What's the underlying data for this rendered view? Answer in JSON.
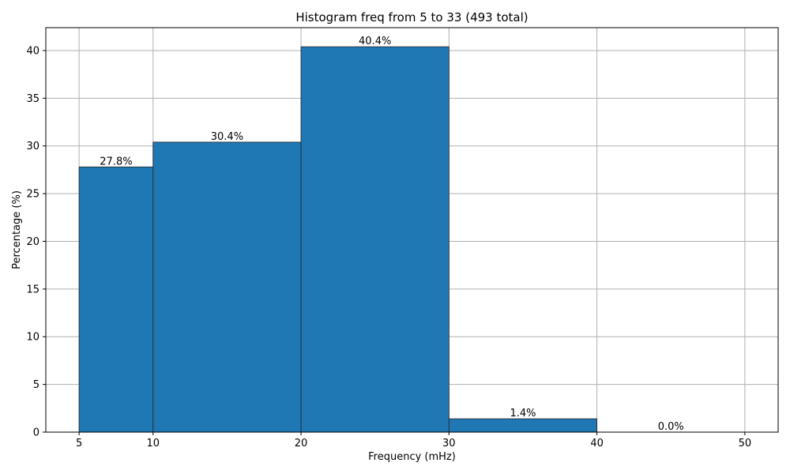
{
  "chart_data": {
    "type": "bar",
    "title": "Histogram freq from 5 to 33 (493 total)",
    "xlabel": "Frequency (mHz)",
    "ylabel": "Percentage (%)",
    "bins": [
      {
        "start": 5,
        "end": 10,
        "value": 27.8,
        "label": "27.8%"
      },
      {
        "start": 10,
        "end": 20,
        "value": 30.4,
        "label": "30.4%"
      },
      {
        "start": 20,
        "end": 30,
        "value": 40.4,
        "label": "40.4%"
      },
      {
        "start": 30,
        "end": 40,
        "value": 1.4,
        "label": "1.4%"
      },
      {
        "start": 40,
        "end": 50,
        "value": 0.0,
        "label": "0.0%"
      }
    ],
    "xticks": [
      5,
      10,
      20,
      30,
      40,
      50
    ],
    "yticks": [
      0,
      5,
      10,
      15,
      20,
      25,
      30,
      35,
      40
    ],
    "xlim": [
      2.75,
      52.25
    ],
    "ylim": [
      0,
      42.4
    ],
    "grid": true,
    "bar_color": "#1f77b4"
  }
}
